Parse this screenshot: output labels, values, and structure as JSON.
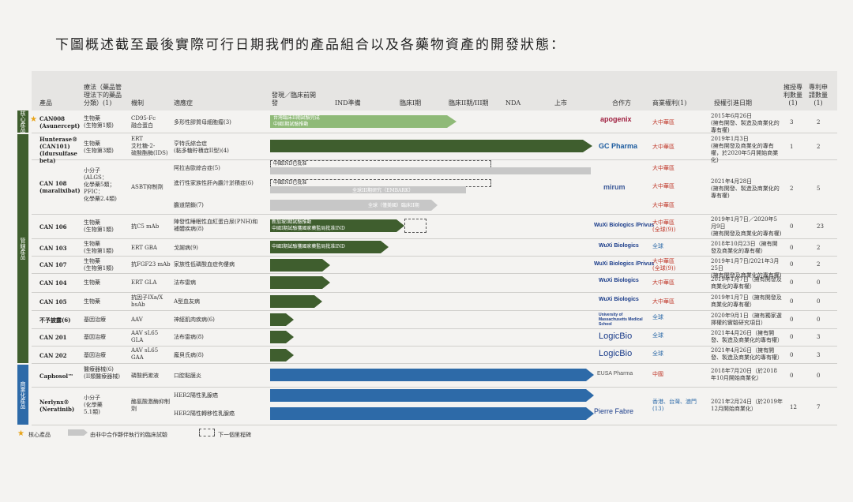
{
  "title": "下圖概述截至最後實際可行日期我們的產品組合以及各藥物資產的開發狀態：",
  "header": {
    "product": "產品",
    "therapy": "療法（藥品管理法下的藥品分類）",
    "therapy_note": "(1)",
    "mechanism": "機制",
    "indication": "適應症",
    "discovery": "發現／臨床前開發",
    "ind": "IND準備",
    "phase1": "臨床I期",
    "phase23": "臨床II期/III期",
    "nda": "NDA",
    "launch": "上市",
    "partner": "合作方",
    "rights": "商業權利(1)",
    "exclusivity": "授權引進日期",
    "licensed_patents": "擁授專利數量(1)",
    "patent_apps": "專利申請數量(1)"
  },
  "sidebars": {
    "core": "核心產品",
    "pipeline": "管線產品",
    "commercial": "商業化產品"
  },
  "rows": [
    {
      "product": "CAN008\n(Asunercept)",
      "therapy": "生物藥\n(生物第1類)",
      "mechanism": "CD95-Fc\n融合蛋白",
      "indication": "多形性膠質母細胞瘤(3)",
      "bar_text": "台灣臨床II期試驗完成\n中國I期試驗推動",
      "partner": "apogenix",
      "rights": "大中華區",
      "date": "2015年6月26日\n(擁有開發、製造及商業化的專有權)",
      "patents": "3",
      "apps": "2"
    },
    {
      "product": "Hunterase®\n(CAN101)\n(Idursulfase\nbeta)",
      "therapy": "生物藥\n(生物第3類)",
      "mechanism": "ERT\n艾杜糖-2-\n硫酸酯酶(IDS)",
      "indication": "亨特氏綜合症\n(黏多糖貯積症II型)(4)",
      "partner": "GC Pharma",
      "rights": "大中華區",
      "date": "2019年1月3日\n(擁有開發及商業化的專有權，於2020年5月開始商業化)",
      "patents": "1",
      "apps": "2"
    },
    {
      "product": "CAN 108\n(maralixibat)",
      "therapy": "小分子\n(ALGS：\n化學藥5類；\nPFIC：\n化學藥2.4類)",
      "mechanism": "ASBT抑制劑",
      "indication_a": "阿拉吉歐綜合症(5)",
      "indication_b": "進行性家族性肝內膽汁淤積症(6)",
      "indication_c": "膽道閉鎖(7)",
      "bar_a": "中國IND已批准",
      "bar_b": "中國IND已批准",
      "bar_c1": "全球III期研究（EMBARK）",
      "bar_c2": "全球（僅美國）臨床II期",
      "partner": "mirum",
      "rights": "大中華區",
      "date": "2021年4月28日\n(擁有開發、製造及商業化的專有權)",
      "patents": "2",
      "apps": "5"
    },
    {
      "product": "CAN 106",
      "therapy": "生物藥\n(生物第1類)",
      "mechanism": "抗C5 mAb",
      "indication": "陣發性睡眠性血紅蛋白尿(PNH)和補體疾病(8)",
      "bar_text": "新加坡I期試驗推動\n中國I期試驗獲國家藥監局批准IND",
      "partner": "WuXi Biologics /Privus",
      "rights": "大中華區\n(全球(9))",
      "date": "2019年1月7日／2020年5月9日\n(擁有開發及商業化的專有權)",
      "patents": "0",
      "apps": "23"
    },
    {
      "product": "CAN 103",
      "therapy": "生物藥\n(生物第1類)",
      "mechanism": "ERT GBA",
      "indication": "戈謝病(9)",
      "bar_text": "中國I期試驗獲國家藥監局批准IND",
      "partner": "WuXi Biologics",
      "rights": "全球",
      "date": "2018年10月23日（擁有開發及商業化的專有權）",
      "patents": "0",
      "apps": "2"
    },
    {
      "product": "CAN 107",
      "therapy": "生物藥\n(生物第1類)",
      "mechanism": "抗FGF23 mAb",
      "indication": "家族性低磷酸血症佝僂病",
      "partner": "WuXi Biologics /Privus",
      "rights": "大中華區\n(全球(9))",
      "date": "2019年1月7日/2021年3月25日\n(擁有開發及商業化的專有權)",
      "patents": "0",
      "apps": "2"
    },
    {
      "product": "CAN 104",
      "therapy": "生物藥",
      "mechanism": "ERT GLA",
      "indication": "法布雷病",
      "partner": "WuXi Biologics",
      "rights": "大中華區",
      "date": "2019年1月7日（擁有開發及商業化的專有權）",
      "patents": "0",
      "apps": "0"
    },
    {
      "product": "CAN 105",
      "therapy": "生物藥",
      "mechanism": "抗因子IXa/X bsAb",
      "indication": "A型血友病",
      "partner": "WuXi Biologics",
      "rights": "大中華區",
      "date": "2019年1月7日（擁有開發及商業化的專有權）",
      "patents": "0",
      "apps": "0"
    },
    {
      "product": "不予披露(6)",
      "therapy": "基因治療",
      "mechanism": "AAV",
      "indication": "神經肌肉疾病(6)",
      "partner": "University of Massachusetts Medical School",
      "rights": "全球",
      "date": "2020年9月1日（擁有獨家選擇權的實驗研究項目）",
      "patents": "0",
      "apps": "0"
    },
    {
      "product": "CAN 201",
      "therapy": "基因治療",
      "mechanism": "AAV sL65\nGLA",
      "indication": "法布雷病(8)",
      "partner": "LogicBio",
      "rights": "全球",
      "date": "2021年4月26日（擁有開發、製造及商業化的專有權）",
      "patents": "0",
      "apps": "3"
    },
    {
      "product": "CAN 202",
      "therapy": "基因治療",
      "mechanism": "AAV sL65\nGAA",
      "indication": "龐貝氏病(8)",
      "partner": "LogicBio",
      "rights": "全球",
      "date": "2021年4月26日（擁有開發、製造及商業化的專有權）",
      "patents": "0",
      "apps": "3"
    },
    {
      "product": "Caphosol™",
      "therapy": "醫療器械(6)\n(II類醫療器械)",
      "mechanism": "磷酸鈣漱液",
      "indication": "口腔黏膜炎",
      "partner": "EUSA Pharma",
      "rights": "中國",
      "date": "2018年7月20日（於2018年10月開始商業化）",
      "patents": "0",
      "apps": "0"
    },
    {
      "product": "Nerlynx®\n(Neratinib)",
      "therapy": "小分子\n(化學藥\n5.1類)",
      "mechanism": "酪氨酸激酶抑制劑",
      "indication_a": "HER2陽性乳腺癌",
      "indication_b": "HER2陽性轉移性乳腺癌",
      "partner": "Pierre Fabre",
      "rights": "香港、台灣、澳門(13)",
      "date": "2021年2月24日（於2019年12月開始商業化）",
      "patents": "12",
      "apps": "7"
    }
  ],
  "legend": {
    "core": "核心產品",
    "partner_trial": "由非中合作夥伴執行的臨床試驗",
    "next": "下一個里程碑"
  },
  "colors": {
    "green": "#3f5e2e",
    "lightgreen": "#8fba78",
    "blue": "#2d6aa8",
    "gray": "#c7c7c7",
    "red": "#c0392b"
  }
}
